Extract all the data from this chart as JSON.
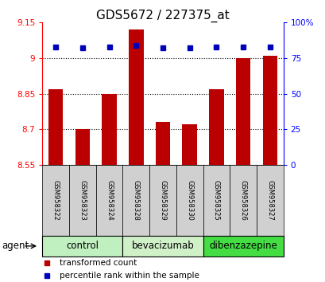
{
  "title": "GDS5672 / 227375_at",
  "samples": [
    "GSM958322",
    "GSM958323",
    "GSM958324",
    "GSM958328",
    "GSM958329",
    "GSM958330",
    "GSM958325",
    "GSM958326",
    "GSM958327"
  ],
  "red_values": [
    8.87,
    8.7,
    8.85,
    9.12,
    8.73,
    8.72,
    8.87,
    9.0,
    9.01
  ],
  "blue_values": [
    83,
    82,
    83,
    84,
    82,
    82,
    83,
    83,
    83
  ],
  "ylim_left": [
    8.55,
    9.15
  ],
  "ylim_right": [
    0,
    100
  ],
  "yticks_left": [
    8.55,
    8.7,
    8.85,
    9.0,
    9.15
  ],
  "yticks_right": [
    0,
    25,
    50,
    75,
    100
  ],
  "ytick_labels_left": [
    "8.55",
    "8.7",
    "8.85",
    "9",
    "9.15"
  ],
  "ytick_labels_right": [
    "0",
    "25",
    "50",
    "75",
    "100%"
  ],
  "groups": [
    {
      "label": "control",
      "indices": [
        0,
        1,
        2
      ],
      "color": "#c0f0c0"
    },
    {
      "label": "bevacizumab",
      "indices": [
        3,
        4,
        5
      ],
      "color": "#d0f0c8"
    },
    {
      "label": "dibenzazepine",
      "indices": [
        6,
        7,
        8
      ],
      "color": "#44dd44"
    }
  ],
  "bar_color": "#bb0000",
  "dot_color": "#0000bb",
  "bar_width": 0.55,
  "bar_bottom": 8.55,
  "agent_label": "agent",
  "legend_red": "transformed count",
  "legend_blue": "percentile rank within the sample",
  "title_fontsize": 11,
  "tick_fontsize": 7.5,
  "label_fontsize": 8.5,
  "sample_fontsize": 6.0,
  "legend_fontsize": 7.5
}
